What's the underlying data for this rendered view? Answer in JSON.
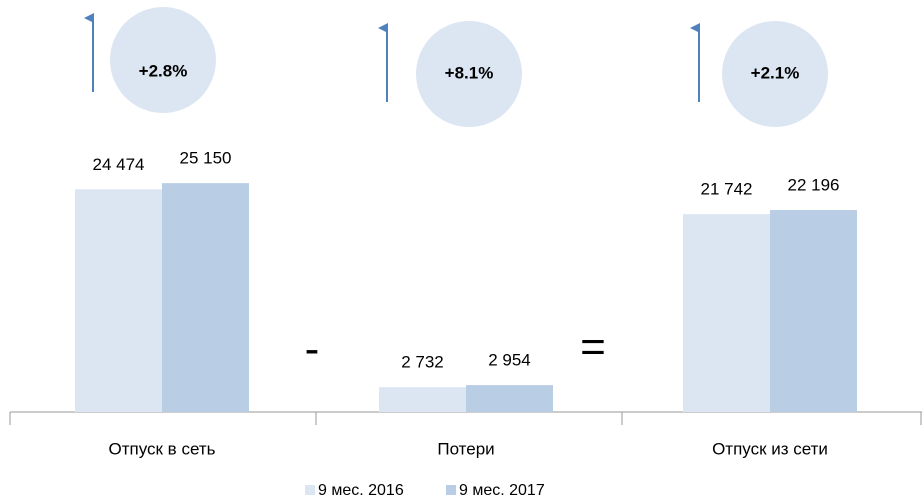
{
  "chart_data": {
    "type": "bar",
    "categories": [
      "Отпуск в сеть",
      "Потери",
      "Отпуск из сети"
    ],
    "series": [
      {
        "name": "9 мес. 2016",
        "color": "#dce6f2",
        "values": [
          24474,
          2732,
          21742
        ],
        "value_labels": [
          "24 474",
          "2 732",
          "21 742"
        ]
      },
      {
        "name": "9 мес. 2017",
        "color": "#b9cde5",
        "values": [
          25150,
          2954,
          22196
        ],
        "value_labels": [
          "25 150",
          "2 954",
          "22 196"
        ]
      }
    ],
    "ylim": [
      0,
      30000
    ],
    "annotations": [
      "+2.8%",
      "+8.1%",
      "+2.1%"
    ],
    "operators": [
      "-",
      "="
    ]
  }
}
